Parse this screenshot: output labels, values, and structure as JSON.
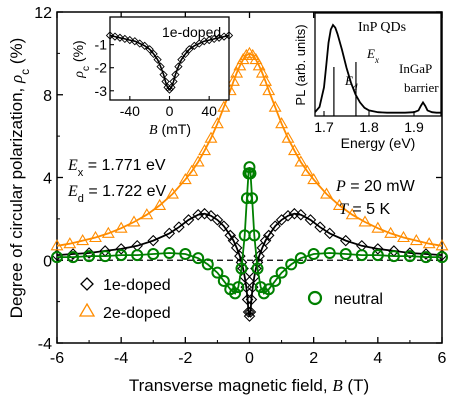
{
  "chart_data": [
    {
      "type": "scatter",
      "xlabel": "Transverse magnetic field, ",
      "xlabel_var": "B",
      "xlabel_unit": " (T)",
      "ylabel": "Degree of circular polarization, ",
      "ylabel_var": "ρ",
      "ylabel_sub": "c",
      "ylabel_unit": " (%)",
      "xlim": [
        -6,
        6
      ],
      "ylim": [
        -4,
        12
      ],
      "xticks": [
        "-6",
        "-4",
        "-2",
        "0",
        "2",
        "4",
        "6"
      ],
      "yticks": [
        "-4",
        "0",
        "4",
        "8",
        "12"
      ],
      "annotations": {
        "ex_var": "E",
        "ex_sub": "x",
        "ex_val": " = 1.771 eV",
        "ed_var": "E",
        "ed_sub": "d",
        "ed_val": " = 1.722 eV",
        "p_var": "P",
        "p_val": " = 20 mW",
        "t_var": "T",
        "t_val": " = 5 K"
      },
      "series": [
        {
          "name": "1e-doped",
          "color": "#000000",
          "marker": "diamond",
          "x": [
            -6.0,
            -5.5,
            -5.0,
            -4.5,
            -4.0,
            -3.5,
            -3.0,
            -2.5,
            -2.2,
            -1.9,
            -1.6,
            -1.4,
            -1.2,
            -1.0,
            -0.8,
            -0.6,
            -0.5,
            -0.4,
            -0.3,
            -0.25,
            -0.2,
            -0.15,
            -0.1,
            -0.06,
            -0.03,
            0.0,
            0.03,
            0.06,
            0.1,
            0.15,
            0.2,
            0.25,
            0.3,
            0.4,
            0.5,
            0.6,
            0.8,
            1.0,
            1.2,
            1.4,
            1.6,
            1.9,
            2.2,
            2.5,
            3.0,
            3.5,
            4.0,
            4.5,
            5.0,
            5.5,
            6.0
          ],
          "values": [
            0.25,
            0.3,
            0.35,
            0.45,
            0.55,
            0.7,
            0.95,
            1.3,
            1.6,
            1.95,
            2.2,
            2.25,
            2.15,
            1.95,
            1.65,
            1.2,
            0.95,
            0.6,
            0.2,
            -0.1,
            -0.4,
            -0.8,
            -1.3,
            -1.9,
            -2.5,
            -2.7,
            -2.5,
            -1.9,
            -1.3,
            -0.8,
            -0.4,
            -0.1,
            0.2,
            0.6,
            0.95,
            1.2,
            1.65,
            1.95,
            2.15,
            2.25,
            2.2,
            1.95,
            1.6,
            1.3,
            0.95,
            0.7,
            0.55,
            0.45,
            0.35,
            0.3,
            0.25
          ]
        },
        {
          "name": "2e-doped",
          "color": "#ff8c00",
          "marker": "triangle",
          "x": [
            -6.0,
            -5.6,
            -5.2,
            -4.8,
            -4.4,
            -4.0,
            -3.6,
            -3.2,
            -2.8,
            -2.4,
            -2.0,
            -1.8,
            -1.6,
            -1.4,
            -1.2,
            -1.0,
            -0.8,
            -0.6,
            -0.5,
            -0.4,
            -0.3,
            -0.2,
            -0.1,
            0.0,
            0.1,
            0.2,
            0.3,
            0.4,
            0.5,
            0.6,
            0.8,
            1.0,
            1.2,
            1.4,
            1.6,
            1.8,
            2.0,
            2.4,
            2.8,
            3.2,
            3.6,
            4.0,
            4.4,
            4.8,
            5.2,
            5.6,
            6.0
          ],
          "values": [
            0.7,
            0.8,
            0.95,
            1.1,
            1.3,
            1.55,
            1.85,
            2.2,
            2.65,
            3.2,
            3.9,
            4.3,
            4.75,
            5.3,
            5.9,
            6.6,
            7.4,
            8.2,
            8.65,
            9.05,
            9.4,
            9.7,
            9.9,
            10.0,
            9.9,
            9.7,
            9.4,
            9.05,
            8.65,
            8.2,
            7.4,
            6.6,
            5.9,
            5.3,
            4.75,
            4.3,
            3.9,
            3.2,
            2.65,
            2.2,
            1.85,
            1.55,
            1.3,
            1.1,
            0.95,
            0.8,
            0.7
          ]
        },
        {
          "name": "neutral",
          "color": "#008000",
          "marker": "circle",
          "x": [
            -6.0,
            -5.5,
            -5.0,
            -4.5,
            -4.0,
            -3.5,
            -3.0,
            -2.5,
            -2.0,
            -1.6,
            -1.3,
            -1.0,
            -0.8,
            -0.6,
            -0.45,
            -0.35,
            -0.25,
            -0.15,
            -0.08,
            -0.03,
            0.0,
            0.03,
            0.08,
            0.15,
            0.25,
            0.35,
            0.45,
            0.6,
            0.8,
            1.0,
            1.3,
            1.6,
            2.0,
            2.5,
            3.0,
            3.5,
            4.0,
            4.5,
            5.0,
            5.5,
            6.0
          ],
          "values": [
            0.15,
            0.15,
            0.2,
            0.2,
            0.25,
            0.25,
            0.3,
            0.35,
            0.3,
            0.1,
            -0.2,
            -0.6,
            -1.0,
            -1.4,
            -1.6,
            -1.3,
            -0.4,
            1.2,
            3.0,
            4.2,
            4.5,
            4.2,
            3.0,
            1.2,
            -0.4,
            -1.3,
            -1.6,
            -1.4,
            -1.0,
            -0.6,
            -0.2,
            0.1,
            0.3,
            0.35,
            0.3,
            0.25,
            0.25,
            0.2,
            0.2,
            0.15,
            0.15
          ]
        }
      ],
      "legend": {
        "placement": "bottom",
        "items": [
          "1e-doped",
          "2e-doped",
          "neutral"
        ]
      }
    },
    {
      "type": "scatter",
      "title": "1e-doped",
      "xlabel_var": "B",
      "xlabel_unit": " (mT)",
      "ylabel_var": "ρ",
      "ylabel_sub": "c",
      "ylabel_unit": " (%)",
      "xlim": [
        -60,
        60
      ],
      "ylim": [
        -3.4,
        0.2
      ],
      "xticks": [
        "-40",
        "0",
        "40"
      ],
      "yticks": [
        "-1",
        "-2",
        "-3"
      ],
      "series": [
        {
          "name": "1e-doped",
          "color": "#000000",
          "x": [
            -60,
            -55,
            -50,
            -45,
            -40,
            -35,
            -30,
            -25,
            -20,
            -16,
            -12,
            -9,
            -6,
            -4,
            -2,
            0,
            2,
            4,
            6,
            9,
            12,
            16,
            20,
            25,
            30,
            35,
            40,
            45,
            50,
            55,
            60
          ],
          "values": [
            -0.6,
            -0.65,
            -0.7,
            -0.75,
            -0.8,
            -0.85,
            -0.95,
            -1.05,
            -1.2,
            -1.4,
            -1.65,
            -1.95,
            -2.3,
            -2.6,
            -2.85,
            -2.95,
            -2.85,
            -2.6,
            -2.3,
            -1.95,
            -1.65,
            -1.4,
            -1.2,
            -1.05,
            -0.95,
            -0.85,
            -0.8,
            -0.75,
            -0.7,
            -0.65,
            -0.6
          ]
        }
      ]
    },
    {
      "type": "line",
      "xlabel": "Energy (eV)",
      "ylabel": "PL (arb. units)",
      "xlim": [
        1.68,
        1.96
      ],
      "xticks": [
        "1.7",
        "1.8",
        "1.9"
      ],
      "annotations": {
        "qd_label": "InP QDs",
        "barrier_label_1": "InGaP",
        "barrier_label_2": "barrier",
        "ex_var": "E",
        "ex_sub": "x",
        "ed_var": "E",
        "ed_sub": "d"
      },
      "markers": {
        "ed": 1.722,
        "ex": 1.771
      },
      "x": [
        1.68,
        1.69,
        1.7,
        1.705,
        1.71,
        1.715,
        1.72,
        1.725,
        1.73,
        1.74,
        1.75,
        1.76,
        1.77,
        1.78,
        1.79,
        1.8,
        1.82,
        1.84,
        1.86,
        1.88,
        1.9,
        1.91,
        1.915,
        1.92,
        1.925,
        1.93,
        1.94,
        1.95,
        1.96
      ],
      "values": [
        0.02,
        0.08,
        0.3,
        0.55,
        0.8,
        0.95,
        1.0,
        0.97,
        0.9,
        0.72,
        0.52,
        0.35,
        0.22,
        0.13,
        0.07,
        0.04,
        0.02,
        0.015,
        0.015,
        0.015,
        0.02,
        0.04,
        0.09,
        0.13,
        0.09,
        0.04,
        0.02,
        0.015,
        0.015
      ]
    }
  ]
}
